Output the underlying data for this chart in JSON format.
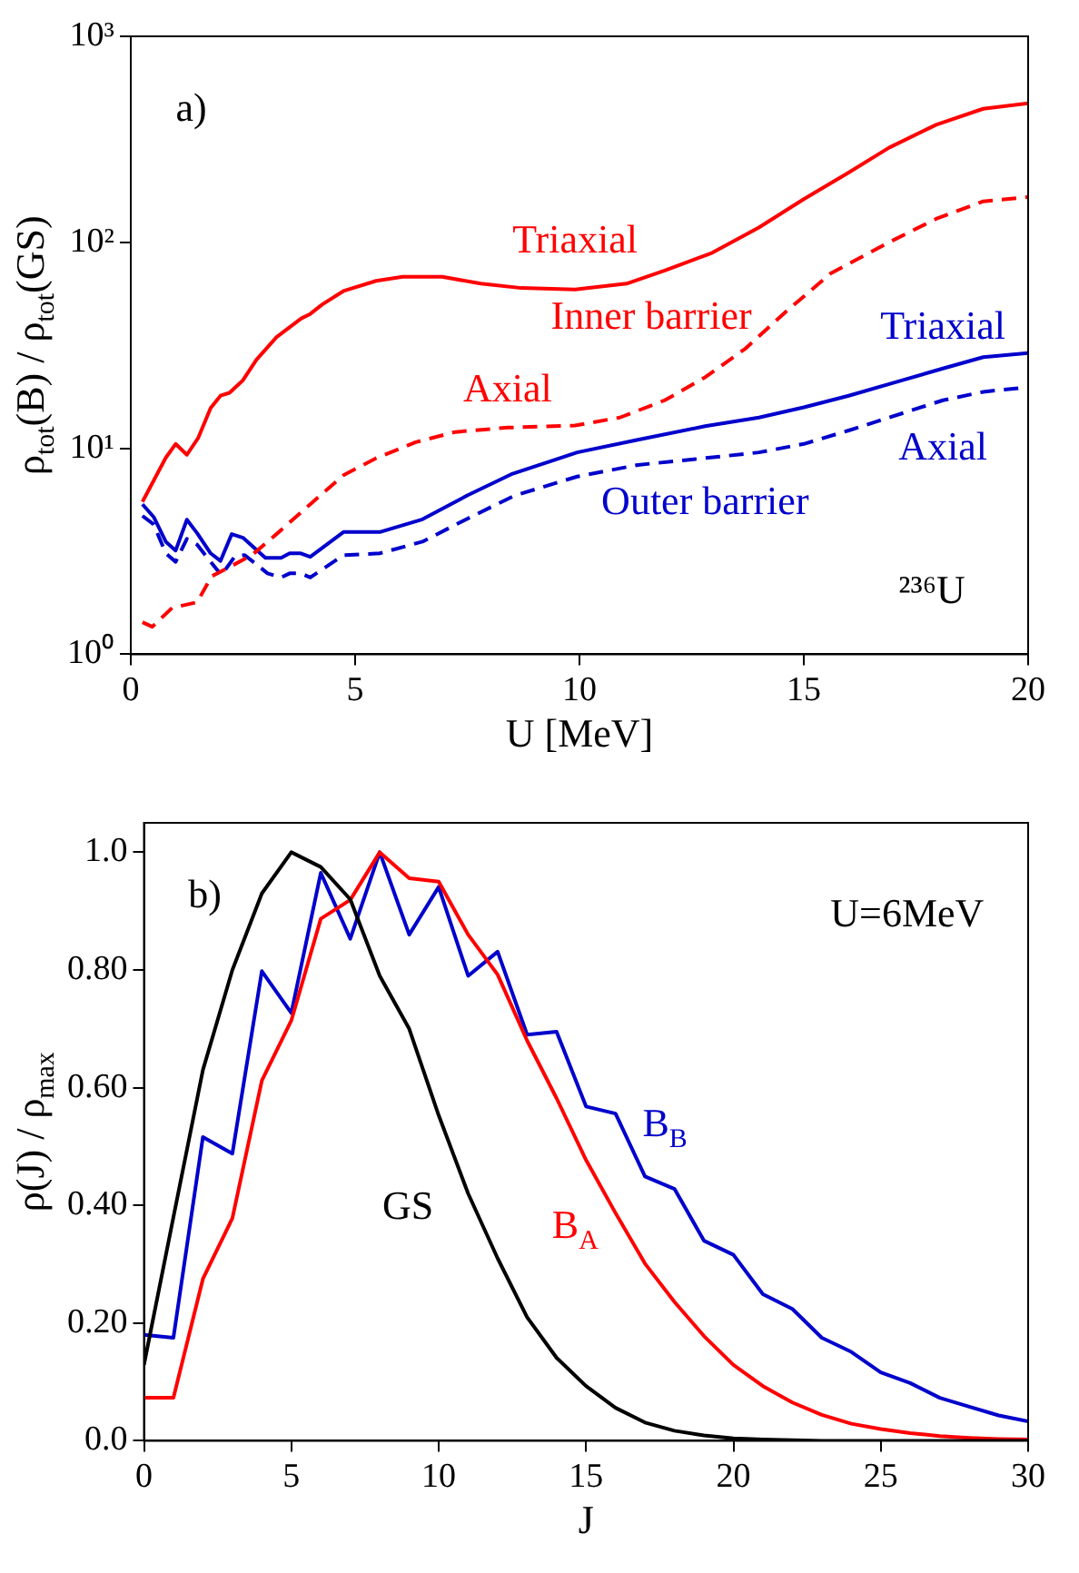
{
  "chart_data": [
    {
      "type": "line",
      "log": "y",
      "marker": "none",
      "xlabel": "U [MeV]",
      "ylabel": "ρ$_{tot}$(B) / ρ$_{tot}$(GS)",
      "xlim": [
        0,
        20
      ],
      "xticks": [
        0,
        5,
        10,
        15,
        20
      ],
      "ylim": [
        1,
        1000
      ],
      "yticks": [
        {
          "value": 1,
          "label": "10⁰"
        },
        {
          "value": 10,
          "label": "10¹"
        },
        {
          "value": 100,
          "label": "10²"
        },
        {
          "value": 1000,
          "label": "10³"
        }
      ],
      "annotations": [
        "a)",
        "Inner barrier",
        "Outer barrier",
        "²³⁶U"
      ],
      "series": [
        {
          "name": "Triaxial",
          "color": "#ff0000",
          "line_style": "solid",
          "x": [
            0.26,
            0.78,
            1.0,
            1.25,
            1.5,
            1.78,
            2.0,
            2.2,
            2.5,
            2.8,
            3.25,
            3.8,
            4.0,
            4.27,
            4.74,
            5.47,
            6.06,
            6.94,
            7.8,
            8.7,
            9.9,
            11.05,
            11.9,
            12.96,
            14.0,
            15.0,
            16.0,
            16.9,
            17.95,
            19.0,
            20
          ],
          "values": [
            5.5,
            9.0,
            10.5,
            9.3,
            11.2,
            15.7,
            18,
            18.6,
            21.4,
            26.9,
            34.7,
            42.7,
            44.9,
            50,
            58,
            65,
            68,
            68,
            63,
            60,
            59,
            63,
            73,
            89,
            118,
            162,
            218,
            288,
            372,
            445,
            473
          ]
        },
        {
          "name": "Axial",
          "color": "#ff0000",
          "line_style": "dashed",
          "x": [
            0.26,
            0.48,
            0.92,
            1.48,
            1.8,
            2.17,
            2.7,
            3.27,
            4.0,
            4.74,
            5.47,
            6.35,
            7.23,
            8.4,
            9.9,
            10.9,
            11.9,
            12.8,
            13.7,
            14.6,
            15.6,
            16.9,
            17.95,
            19.0,
            20
          ],
          "values": [
            1.43,
            1.36,
            1.68,
            1.79,
            2.39,
            2.63,
            3.03,
            3.87,
            5.35,
            7.4,
            8.96,
            10.7,
            12.0,
            12.6,
            12.9,
            14.1,
            17.1,
            22.1,
            30.5,
            46,
            70.6,
            100,
            130,
            158,
            166
          ]
        },
        {
          "name": "Triaxial",
          "color": "#0000cc",
          "line_style": "solid",
          "x": [
            0.26,
            0.51,
            0.78,
            1.0,
            1.25,
            1.48,
            1.78,
            2.0,
            2.25,
            2.5,
            3.0,
            3.35,
            3.54,
            3.79,
            4.0,
            4.74,
            5.55,
            6.5,
            7.5,
            8.48,
            9.95,
            11.3,
            12.8,
            14.0,
            15.0,
            16.0,
            17.2,
            18.1,
            19.0,
            20
          ],
          "values": [
            5.35,
            4.64,
            3.52,
            3.19,
            4.5,
            3.87,
            3.09,
            2.84,
            3.83,
            3.68,
            2.94,
            2.94,
            3.09,
            3.09,
            2.97,
            3.92,
            3.92,
            4.52,
            5.9,
            7.48,
            9.55,
            11.0,
            12.8,
            14.1,
            15.8,
            18.0,
            21.4,
            24.4,
            27.7,
            29.0
          ]
        },
        {
          "name": "Axial",
          "color": "#0000cc",
          "line_style": "dashed",
          "x": [
            0.26,
            0.51,
            0.78,
            1.0,
            1.25,
            1.48,
            1.78,
            2.02,
            2.32,
            2.54,
            3.05,
            3.35,
            3.54,
            3.79,
            4.0,
            4.74,
            5.55,
            6.5,
            7.5,
            8.55,
            9.95,
            11.3,
            12.8,
            14.0,
            15.0,
            16.0,
            17.2,
            18.1,
            19.0,
            20
          ],
          "values": [
            4.7,
            4.27,
            3.09,
            2.81,
            3.63,
            3.4,
            2.81,
            2.42,
            2.99,
            3.03,
            2.47,
            2.36,
            2.47,
            2.47,
            2.36,
            3.03,
            3.09,
            3.52,
            4.55,
            5.89,
            7.29,
            8.3,
            8.96,
            9.55,
            10.5,
            12.2,
            14.8,
            17.1,
            18.8,
            19.8
          ]
        }
      ]
    },
    {
      "type": "line",
      "marker": "none",
      "xlabel": "J",
      "ylabel": "ρ(J) / ρ$_{max}$",
      "xlim": [
        0,
        30
      ],
      "xticks": [
        0,
        5,
        10,
        15,
        20,
        25,
        30
      ],
      "ylim": [
        0,
        1.05
      ],
      "yticks": [
        {
          "value": 0,
          "label": "0.0"
        },
        {
          "value": 0.2,
          "label": "0.20"
        },
        {
          "value": 0.4,
          "label": "0.40"
        },
        {
          "value": 0.6,
          "label": "0.60"
        },
        {
          "value": 0.8,
          "label": "0.80"
        },
        {
          "value": 1,
          "label": "1.0"
        }
      ],
      "annotations": [
        "b)",
        "U=6MeV"
      ],
      "x": [
        0,
        1,
        2,
        3,
        4,
        5,
        6,
        7,
        8,
        9,
        10,
        11,
        12,
        13,
        14,
        15,
        16,
        17,
        18,
        19,
        20,
        21,
        22,
        23,
        24,
        25,
        26,
        27,
        28,
        29,
        30
      ],
      "series": [
        {
          "name": "GS",
          "color": "#000000",
          "line_style": "solid",
          "values": [
            0.129,
            0.38,
            0.63,
            0.8,
            0.93,
            1.0,
            0.975,
            0.92,
            0.79,
            0.7,
            0.553,
            0.42,
            0.31,
            0.21,
            0.141,
            0.093,
            0.056,
            0.031,
            0.017,
            0.009,
            0.004,
            0.002,
            0.001,
            0,
            0,
            0,
            0,
            0,
            0,
            0,
            0
          ]
        },
        {
          "name": "B$_{A}$",
          "color": "#ff0000",
          "line_style": "solid",
          "values": [
            0.073,
            0.073,
            0.275,
            0.378,
            0.612,
            0.714,
            0.887,
            0.919,
            1.0,
            0.956,
            0.95,
            0.86,
            0.792,
            0.68,
            0.582,
            0.477,
            0.387,
            0.301,
            0.236,
            0.178,
            0.129,
            0.093,
            0.065,
            0.044,
            0.029,
            0.02,
            0.013,
            0.008,
            0.005,
            0.003,
            0.002
          ]
        },
        {
          "name": "B$_{B}$",
          "color": "#0000cc",
          "line_style": "solid",
          "values": [
            0.18,
            0.175,
            0.516,
            0.488,
            0.798,
            0.727,
            0.965,
            0.853,
            1.0,
            0.86,
            0.941,
            0.79,
            0.831,
            0.69,
            0.695,
            0.568,
            0.556,
            0.449,
            0.428,
            0.34,
            0.316,
            0.249,
            0.224,
            0.175,
            0.151,
            0.116,
            0.098,
            0.073,
            0.058,
            0.043,
            0.033
          ]
        }
      ]
    }
  ]
}
